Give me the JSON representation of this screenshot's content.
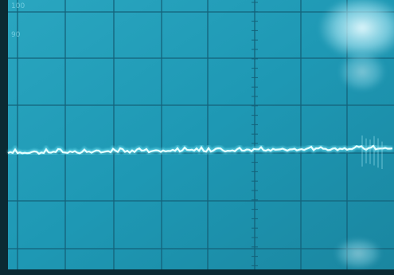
{
  "screen": {
    "graticule_labels": [
      "100",
      "90"
    ]
  }
}
